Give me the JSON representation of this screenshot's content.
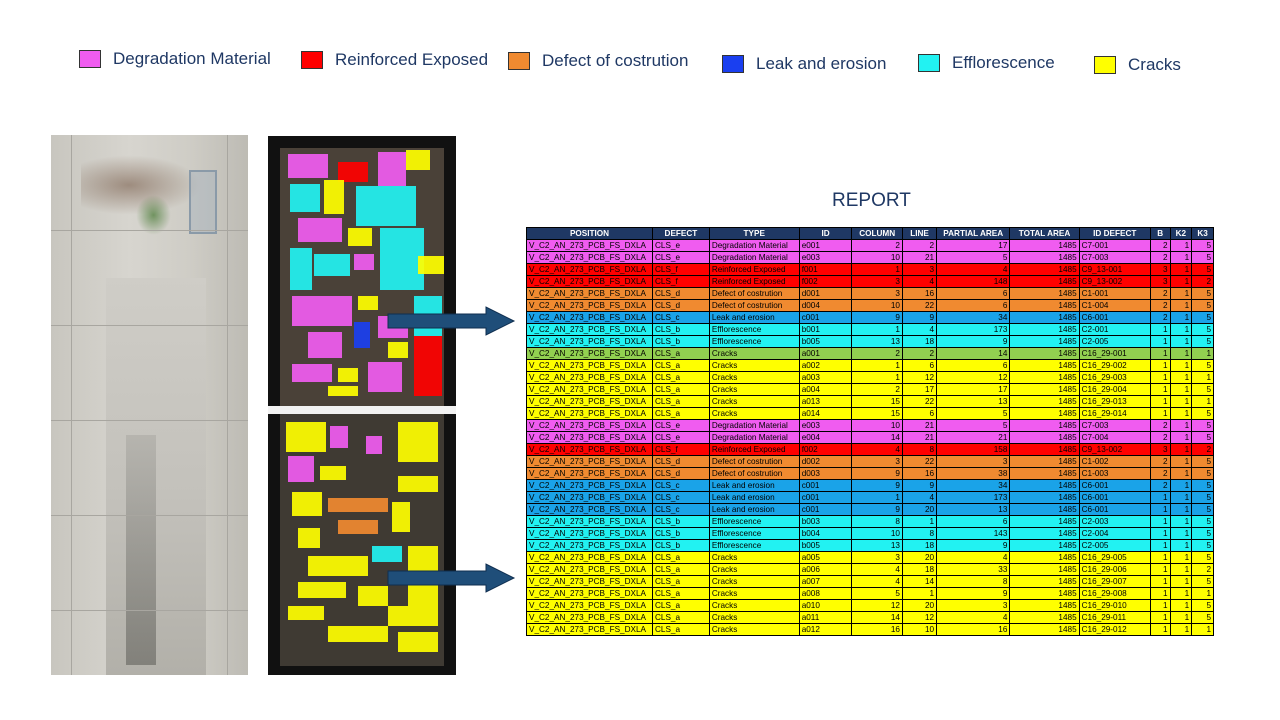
{
  "legend": [
    {
      "label": "Degradation Material",
      "color": "#f05cf0"
    },
    {
      "label": "Reinforced Exposed",
      "color": "#ff0000"
    },
    {
      "label": "Defect of costrution",
      "color": "#f08a30"
    },
    {
      "label": "Leak and erosion",
      "color": "#1a3ff0"
    },
    {
      "label": "Efflorescence",
      "color": "#22f2f2"
    },
    {
      "label": "Cracks",
      "color": "#ffff00"
    }
  ],
  "report": {
    "title": "REPORT",
    "columns": [
      "POSITION",
      "DEFECT",
      "TYPE",
      "ID",
      "COLUMN",
      "LINE",
      "PARTIAL AREA",
      "TOTAL AREA",
      "ID DEFECT",
      "B",
      "K2",
      "K3"
    ],
    "rows": [
      {
        "position": "V_C2_AN_273_PCB_FS_DXLA",
        "defect": "CLS_e",
        "type": "Degradation Material",
        "id": "e001",
        "column": "2",
        "line": "2",
        "partial_area": "17",
        "total_area": "1485",
        "id_defect": "C7-001",
        "b": "2",
        "k2": "1",
        "k3": "5",
        "color": "#f05cf0"
      },
      {
        "position": "V_C2_AN_273_PCB_FS_DXLA",
        "defect": "CLS_e",
        "type": "Degradation Material",
        "id": "e003",
        "column": "10",
        "line": "21",
        "partial_area": "5",
        "total_area": "1485",
        "id_defect": "C7-003",
        "b": "2",
        "k2": "1",
        "k3": "5",
        "color": "#f05cf0"
      },
      {
        "position": "V_C2_AN_273_PCB_FS_DXLA",
        "defect": "CLS_f",
        "type": "Reinforced Exposed",
        "id": "f001",
        "column": "1",
        "line": "3",
        "partial_area": "4",
        "total_area": "1485",
        "id_defect": "C9_13-001",
        "b": "3",
        "k2": "1",
        "k3": "5",
        "color": "#ff0000"
      },
      {
        "position": "V_C2_AN_273_PCB_FS_DXLA",
        "defect": "CLS_f",
        "type": "Reinforced Exposed",
        "id": "f002",
        "column": "3",
        "line": "4",
        "partial_area": "148",
        "total_area": "1485",
        "id_defect": "C9_13-002",
        "b": "3",
        "k2": "1",
        "k3": "2",
        "color": "#ff0000"
      },
      {
        "position": "V_C2_AN_273_PCB_FS_DXLA",
        "defect": "CLS_d",
        "type": "Defect of costrution",
        "id": "d001",
        "column": "3",
        "line": "16",
        "partial_area": "6",
        "total_area": "1485",
        "id_defect": "C1-001",
        "b": "2",
        "k2": "1",
        "k3": "5",
        "color": "#f08a30"
      },
      {
        "position": "V_C2_AN_273_PCB_FS_DXLA",
        "defect": "CLS_d",
        "type": "Defect of costrution",
        "id": "d004",
        "column": "10",
        "line": "22",
        "partial_area": "6",
        "total_area": "1485",
        "id_defect": "C1-004",
        "b": "2",
        "k2": "1",
        "k3": "5",
        "color": "#f08a30"
      },
      {
        "position": "V_C2_AN_273_PCB_FS_DXLA",
        "defect": "CLS_c",
        "type": "Leak and erosion",
        "id": "c001",
        "column": "9",
        "line": "9",
        "partial_area": "34",
        "total_area": "1485",
        "id_defect": "C6-001",
        "b": "2",
        "k2": "1",
        "k3": "5",
        "color": "#1aa3e8"
      },
      {
        "position": "V_C2_AN_273_PCB_FS_DXLA",
        "defect": "CLS_b",
        "type": "Efflorescence",
        "id": "b001",
        "column": "1",
        "line": "4",
        "partial_area": "173",
        "total_area": "1485",
        "id_defect": "C2-001",
        "b": "1",
        "k2": "1",
        "k3": "5",
        "color": "#22f2f2"
      },
      {
        "position": "V_C2_AN_273_PCB_FS_DXLA",
        "defect": "CLS_b",
        "type": "Efflorescence",
        "id": "b005",
        "column": "13",
        "line": "18",
        "partial_area": "9",
        "total_area": "1485",
        "id_defect": "C2-005",
        "b": "1",
        "k2": "1",
        "k3": "5",
        "color": "#22f2f2"
      },
      {
        "position": "V_C2_AN_273_PCB_FS_DXLA",
        "defect": "CLS_a",
        "type": "Cracks",
        "id": "a001",
        "column": "2",
        "line": "2",
        "partial_area": "14",
        "total_area": "1485",
        "id_defect": "C16_29-001",
        "b": "1",
        "k2": "1",
        "k3": "1",
        "color": "#92d050"
      },
      {
        "position": "V_C2_AN_273_PCB_FS_DXLA",
        "defect": "CLS_a",
        "type": "Cracks",
        "id": "a002",
        "column": "1",
        "line": "6",
        "partial_area": "6",
        "total_area": "1485",
        "id_defect": "C16_29-002",
        "b": "1",
        "k2": "1",
        "k3": "5",
        "color": "#ffff00"
      },
      {
        "position": "V_C2_AN_273_PCB_FS_DXLA",
        "defect": "CLS_a",
        "type": "Cracks",
        "id": "a003",
        "column": "1",
        "line": "12",
        "partial_area": "12",
        "total_area": "1485",
        "id_defect": "C16_29-003",
        "b": "1",
        "k2": "1",
        "k3": "1",
        "color": "#ffff00"
      },
      {
        "position": "V_C2_AN_273_PCB_FS_DXLA",
        "defect": "CLS_a",
        "type": "Cracks",
        "id": "a004",
        "column": "2",
        "line": "17",
        "partial_area": "17",
        "total_area": "1485",
        "id_defect": "C16_29-004",
        "b": "1",
        "k2": "1",
        "k3": "5",
        "color": "#ffff00"
      },
      {
        "position": "V_C2_AN_273_PCB_FS_DXLA",
        "defect": "CLS_a",
        "type": "Cracks",
        "id": "a013",
        "column": "15",
        "line": "22",
        "partial_area": "13",
        "total_area": "1485",
        "id_defect": "C16_29-013",
        "b": "1",
        "k2": "1",
        "k3": "1",
        "color": "#ffff00"
      },
      {
        "position": "V_C2_AN_273_PCB_FS_DXLA",
        "defect": "CLS_a",
        "type": "Cracks",
        "id": "a014",
        "column": "15",
        "line": "6",
        "partial_area": "5",
        "total_area": "1485",
        "id_defect": "C16_29-014",
        "b": "1",
        "k2": "1",
        "k3": "5",
        "color": "#ffff00"
      },
      {
        "position": "V_C2_AN_273_PCB_FS_DXLA",
        "defect": "CLS_e",
        "type": "Degradation Material",
        "id": "e003",
        "column": "10",
        "line": "21",
        "partial_area": "5",
        "total_area": "1485",
        "id_defect": "C7-003",
        "b": "2",
        "k2": "1",
        "k3": "5",
        "color": "#f05cf0"
      },
      {
        "position": "V_C2_AN_273_PCB_FS_DXLA",
        "defect": "CLS_e",
        "type": "Degradation Material",
        "id": "e004",
        "column": "14",
        "line": "21",
        "partial_area": "21",
        "total_area": "1485",
        "id_defect": "C7-004",
        "b": "2",
        "k2": "1",
        "k3": "5",
        "color": "#f05cf0"
      },
      {
        "position": "V_C2_AN_273_PCB_FS_DXLA",
        "defect": "CLS_f",
        "type": "Reinforced Exposed",
        "id": "f002",
        "column": "4",
        "line": "8",
        "partial_area": "158",
        "total_area": "1485",
        "id_defect": "C9_13-002",
        "b": "3",
        "k2": "1",
        "k3": "2",
        "color": "#ff0000"
      },
      {
        "position": "V_C2_AN_273_PCB_FS_DXLA",
        "defect": "CLS_d",
        "type": "Defect of costrution",
        "id": "d002",
        "column": "3",
        "line": "22",
        "partial_area": "3",
        "total_area": "1485",
        "id_defect": "C1-002",
        "b": "2",
        "k2": "1",
        "k3": "5",
        "color": "#f08a30"
      },
      {
        "position": "V_C2_AN_273_PCB_FS_DXLA",
        "defect": "CLS_d",
        "type": "Defect of costrution",
        "id": "d003",
        "column": "9",
        "line": "16",
        "partial_area": "38",
        "total_area": "1485",
        "id_defect": "C1-003",
        "b": "2",
        "k2": "1",
        "k3": "5",
        "color": "#f08a30"
      },
      {
        "position": "V_C2_AN_273_PCB_FS_DXLA",
        "defect": "CLS_c",
        "type": "Leak and erosion",
        "id": "c001",
        "column": "9",
        "line": "9",
        "partial_area": "34",
        "total_area": "1485",
        "id_defect": "C6-001",
        "b": "2",
        "k2": "1",
        "k3": "5",
        "color": "#1aa3e8"
      },
      {
        "position": "V_C2_AN_273_PCB_FS_DXLA",
        "defect": "CLS_c",
        "type": "Leak and erosion",
        "id": "c001",
        "column": "1",
        "line": "4",
        "partial_area": "173",
        "total_area": "1485",
        "id_defect": "C6-001",
        "b": "1",
        "k2": "1",
        "k3": "5",
        "color": "#1aa3e8"
      },
      {
        "position": "V_C2_AN_273_PCB_FS_DXLA",
        "defect": "CLS_c",
        "type": "Leak and erosion",
        "id": "c001",
        "column": "9",
        "line": "20",
        "partial_area": "13",
        "total_area": "1485",
        "id_defect": "C6-001",
        "b": "1",
        "k2": "1",
        "k3": "5",
        "color": "#1aa3e8"
      },
      {
        "position": "V_C2_AN_273_PCB_FS_DXLA",
        "defect": "CLS_b",
        "type": "Efflorescence",
        "id": "b003",
        "column": "8",
        "line": "1",
        "partial_area": "6",
        "total_area": "1485",
        "id_defect": "C2-003",
        "b": "1",
        "k2": "1",
        "k3": "5",
        "color": "#22f2f2"
      },
      {
        "position": "V_C2_AN_273_PCB_FS_DXLA",
        "defect": "CLS_b",
        "type": "Efflorescence",
        "id": "b004",
        "column": "10",
        "line": "8",
        "partial_area": "143",
        "total_area": "1485",
        "id_defect": "C2-004",
        "b": "1",
        "k2": "1",
        "k3": "5",
        "color": "#22f2f2"
      },
      {
        "position": "V_C2_AN_273_PCB_FS_DXLA",
        "defect": "CLS_b",
        "type": "Efflorescence",
        "id": "b005",
        "column": "13",
        "line": "18",
        "partial_area": "9",
        "total_area": "1485",
        "id_defect": "C2-005",
        "b": "1",
        "k2": "1",
        "k3": "5",
        "color": "#22f2f2"
      },
      {
        "position": "V_C2_AN_273_PCB_FS_DXLA",
        "defect": "CLS_a",
        "type": "Cracks",
        "id": "a005",
        "column": "3",
        "line": "20",
        "partial_area": "4",
        "total_area": "1485",
        "id_defect": "C16_29-005",
        "b": "1",
        "k2": "1",
        "k3": "5",
        "color": "#ffff00"
      },
      {
        "position": "V_C2_AN_273_PCB_FS_DXLA",
        "defect": "CLS_a",
        "type": "Cracks",
        "id": "a006",
        "column": "4",
        "line": "18",
        "partial_area": "33",
        "total_area": "1485",
        "id_defect": "C16_29-006",
        "b": "1",
        "k2": "1",
        "k3": "2",
        "color": "#ffff00"
      },
      {
        "position": "V_C2_AN_273_PCB_FS_DXLA",
        "defect": "CLS_a",
        "type": "Cracks",
        "id": "a007",
        "column": "4",
        "line": "14",
        "partial_area": "8",
        "total_area": "1485",
        "id_defect": "C16_29-007",
        "b": "1",
        "k2": "1",
        "k3": "5",
        "color": "#ffff00"
      },
      {
        "position": "V_C2_AN_273_PCB_FS_DXLA",
        "defect": "CLS_a",
        "type": "Cracks",
        "id": "a008",
        "column": "5",
        "line": "1",
        "partial_area": "9",
        "total_area": "1485",
        "id_defect": "C16_29-008",
        "b": "1",
        "k2": "1",
        "k3": "1",
        "color": "#ffff00"
      },
      {
        "position": "V_C2_AN_273_PCB_FS_DXLA",
        "defect": "CLS_a",
        "type": "Cracks",
        "id": "a010",
        "column": "12",
        "line": "20",
        "partial_area": "3",
        "total_area": "1485",
        "id_defect": "C16_29-010",
        "b": "1",
        "k2": "1",
        "k3": "5",
        "color": "#ffff00"
      },
      {
        "position": "V_C2_AN_273_PCB_FS_DXLA",
        "defect": "CLS_a",
        "type": "Cracks",
        "id": "a011",
        "column": "14",
        "line": "12",
        "partial_area": "4",
        "total_area": "1485",
        "id_defect": "C16_29-011",
        "b": "1",
        "k2": "1",
        "k3": "5",
        "color": "#ffff00"
      },
      {
        "position": "V_C2_AN_273_PCB_FS_DXLA",
        "defect": "CLS_a",
        "type": "Cracks",
        "id": "a012",
        "column": "16",
        "line": "10",
        "partial_area": "16",
        "total_area": "1485",
        "id_defect": "C16_29-012",
        "b": "1",
        "k2": "1",
        "k3": "1",
        "color": "#ffff00"
      }
    ]
  },
  "arrow_color": "#1f4e79"
}
